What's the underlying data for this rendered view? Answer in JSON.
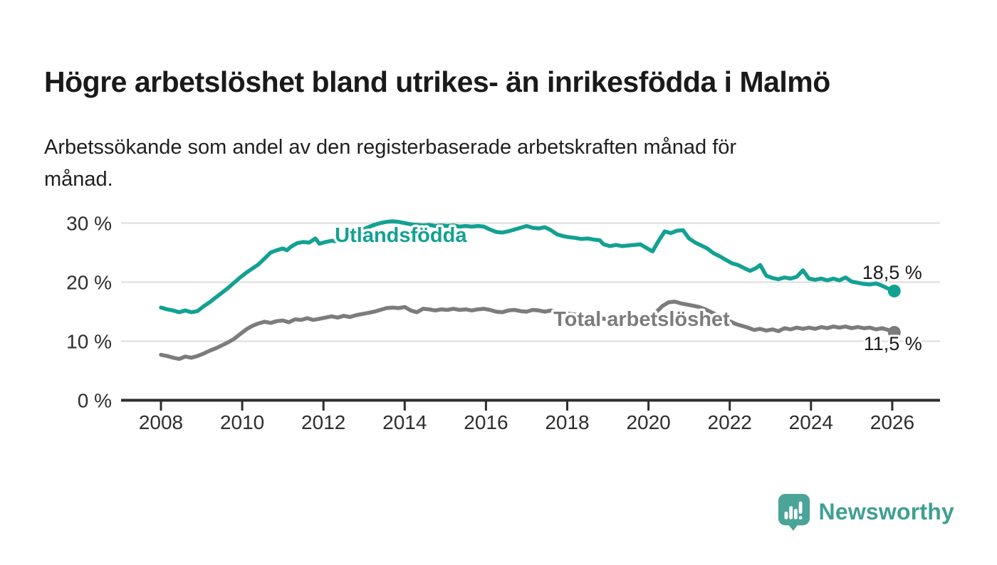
{
  "header": {
    "title": "Högre arbetslöshet bland utrikes- än inrikesfödda i Malmö",
    "subtitle": "Arbetssökande som andel av den registerbaserade arbetskraften månad för\nmånad."
  },
  "footer": {
    "brand": "Newsworthy",
    "brand_color": "#3f9f92",
    "logo_icon": "newsworthy-speech-bubble-bar-chart-icon"
  },
  "chart_data": {
    "type": "line",
    "title": "Högre arbetslöshet bland utrikes- än inrikesfödda i Malmö",
    "subtitle": "Arbetssökande som andel av den registerbaserade arbetskraften månad för månad.",
    "unit": "%",
    "grid": true,
    "legend": "inline-labels-on-lines",
    "x_axis": {
      "label": "",
      "ticks": [
        2008,
        2010,
        2012,
        2014,
        2016,
        2018,
        2020,
        2022,
        2024,
        2026
      ],
      "range": [
        2007.0,
        2027.1
      ]
    },
    "y_axis": {
      "label": "",
      "values": [
        0,
        10,
        20,
        30
      ],
      "tick_labels": [
        "0 %",
        "10 %",
        "20 %",
        "30 %"
      ],
      "range": [
        0,
        33
      ]
    },
    "colors": {
      "axis": "#2e2e2e",
      "gridline": "#dcdcdc",
      "value_label": "#1a1a1a"
    },
    "series": [
      {
        "name": "Utlandsfödda",
        "color": "#12a192",
        "end_label": "18,5 %",
        "end_label_side": "above",
        "label_anchor": [
          2012.28,
          26.8
        ],
        "points": [
          [
            2008.0,
            15.7
          ],
          [
            2008.15,
            15.4
          ],
          [
            2008.3,
            15.2
          ],
          [
            2008.45,
            14.9
          ],
          [
            2008.6,
            15.2
          ],
          [
            2008.75,
            14.9
          ],
          [
            2008.9,
            15.1
          ],
          [
            2009.05,
            15.9
          ],
          [
            2009.2,
            16.6
          ],
          [
            2009.35,
            17.4
          ],
          [
            2009.5,
            18.2
          ],
          [
            2009.65,
            19.0
          ],
          [
            2009.8,
            19.9
          ],
          [
            2009.95,
            20.8
          ],
          [
            2010.1,
            21.6
          ],
          [
            2010.25,
            22.3
          ],
          [
            2010.4,
            23.0
          ],
          [
            2010.55,
            24.0
          ],
          [
            2010.7,
            25.0
          ],
          [
            2010.85,
            25.4
          ],
          [
            2011.0,
            25.7
          ],
          [
            2011.1,
            25.4
          ],
          [
            2011.2,
            26.0
          ],
          [
            2011.35,
            26.6
          ],
          [
            2011.5,
            26.8
          ],
          [
            2011.65,
            26.7
          ],
          [
            2011.8,
            27.4
          ],
          [
            2011.9,
            26.5
          ],
          [
            2012.05,
            26.8
          ],
          [
            2012.2,
            27.0
          ],
          [
            2012.35,
            26.9
          ],
          [
            2012.5,
            27.3
          ],
          [
            2012.65,
            27.8
          ],
          [
            2012.8,
            28.3
          ],
          [
            2012.95,
            28.8
          ],
          [
            2013.1,
            29.3
          ],
          [
            2013.25,
            29.7
          ],
          [
            2013.4,
            30.0
          ],
          [
            2013.55,
            30.2
          ],
          [
            2013.7,
            30.3
          ],
          [
            2013.85,
            30.2
          ],
          [
            2014.0,
            30.0
          ],
          [
            2014.15,
            29.8
          ],
          [
            2014.3,
            29.7
          ],
          [
            2014.45,
            29.6
          ],
          [
            2014.6,
            29.7
          ],
          [
            2014.75,
            29.5
          ],
          [
            2014.9,
            29.6
          ],
          [
            2015.05,
            29.5
          ],
          [
            2015.2,
            29.6
          ],
          [
            2015.35,
            29.4
          ],
          [
            2015.5,
            29.5
          ],
          [
            2015.65,
            29.4
          ],
          [
            2015.8,
            29.5
          ],
          [
            2015.95,
            29.4
          ],
          [
            2016.1,
            28.9
          ],
          [
            2016.25,
            28.5
          ],
          [
            2016.4,
            28.4
          ],
          [
            2016.55,
            28.6
          ],
          [
            2016.7,
            28.9
          ],
          [
            2016.85,
            29.2
          ],
          [
            2017.0,
            29.5
          ],
          [
            2017.15,
            29.2
          ],
          [
            2017.3,
            29.1
          ],
          [
            2017.45,
            29.3
          ],
          [
            2017.6,
            28.8
          ],
          [
            2017.75,
            28.1
          ],
          [
            2017.9,
            27.8
          ],
          [
            2018.05,
            27.6
          ],
          [
            2018.2,
            27.5
          ],
          [
            2018.35,
            27.3
          ],
          [
            2018.5,
            27.4
          ],
          [
            2018.65,
            27.2
          ],
          [
            2018.8,
            27.1
          ],
          [
            2018.9,
            26.4
          ],
          [
            2019.05,
            26.1
          ],
          [
            2019.2,
            26.3
          ],
          [
            2019.35,
            26.1
          ],
          [
            2019.5,
            26.2
          ],
          [
            2019.65,
            26.3
          ],
          [
            2019.8,
            26.4
          ],
          [
            2019.95,
            25.8
          ],
          [
            2020.1,
            25.2
          ],
          [
            2020.25,
            27.0
          ],
          [
            2020.4,
            28.6
          ],
          [
            2020.55,
            28.3
          ],
          [
            2020.7,
            28.7
          ],
          [
            2020.85,
            28.8
          ],
          [
            2021.0,
            27.4
          ],
          [
            2021.15,
            26.7
          ],
          [
            2021.3,
            26.2
          ],
          [
            2021.45,
            25.7
          ],
          [
            2021.6,
            24.9
          ],
          [
            2021.75,
            24.4
          ],
          [
            2021.9,
            23.8
          ],
          [
            2022.05,
            23.2
          ],
          [
            2022.2,
            22.9
          ],
          [
            2022.35,
            22.4
          ],
          [
            2022.5,
            21.9
          ],
          [
            2022.65,
            22.4
          ],
          [
            2022.75,
            22.9
          ],
          [
            2022.9,
            21.1
          ],
          [
            2023.05,
            20.7
          ],
          [
            2023.2,
            20.5
          ],
          [
            2023.35,
            20.8
          ],
          [
            2023.5,
            20.6
          ],
          [
            2023.65,
            20.9
          ],
          [
            2023.8,
            22.0
          ],
          [
            2023.95,
            20.6
          ],
          [
            2024.1,
            20.4
          ],
          [
            2024.25,
            20.6
          ],
          [
            2024.4,
            20.3
          ],
          [
            2024.55,
            20.6
          ],
          [
            2024.7,
            20.3
          ],
          [
            2024.85,
            20.8
          ],
          [
            2025.0,
            20.1
          ],
          [
            2025.15,
            19.9
          ],
          [
            2025.3,
            19.7
          ],
          [
            2025.45,
            19.6
          ],
          [
            2025.6,
            19.8
          ],
          [
            2025.75,
            19.4
          ],
          [
            2025.9,
            18.9
          ],
          [
            2026.05,
            18.5
          ]
        ]
      },
      {
        "name": "Total arbetslöshet",
        "color": "#7c7c7c",
        "end_label": "11,5 %",
        "end_label_side": "below",
        "label_anchor": [
          2017.66,
          12.6
        ],
        "points": [
          [
            2008.0,
            7.7
          ],
          [
            2008.15,
            7.5
          ],
          [
            2008.3,
            7.2
          ],
          [
            2008.45,
            7.0
          ],
          [
            2008.6,
            7.4
          ],
          [
            2008.75,
            7.2
          ],
          [
            2008.9,
            7.5
          ],
          [
            2009.05,
            7.9
          ],
          [
            2009.2,
            8.4
          ],
          [
            2009.35,
            8.8
          ],
          [
            2009.5,
            9.3
          ],
          [
            2009.65,
            9.8
          ],
          [
            2009.8,
            10.4
          ],
          [
            2009.95,
            11.2
          ],
          [
            2010.1,
            12.0
          ],
          [
            2010.25,
            12.6
          ],
          [
            2010.4,
            13.0
          ],
          [
            2010.55,
            13.3
          ],
          [
            2010.7,
            13.1
          ],
          [
            2010.85,
            13.4
          ],
          [
            2011.0,
            13.5
          ],
          [
            2011.15,
            13.2
          ],
          [
            2011.3,
            13.7
          ],
          [
            2011.45,
            13.6
          ],
          [
            2011.6,
            13.9
          ],
          [
            2011.75,
            13.6
          ],
          [
            2011.9,
            13.8
          ],
          [
            2012.05,
            14.0
          ],
          [
            2012.2,
            14.2
          ],
          [
            2012.35,
            14.0
          ],
          [
            2012.5,
            14.3
          ],
          [
            2012.65,
            14.1
          ],
          [
            2012.8,
            14.4
          ],
          [
            2012.95,
            14.6
          ],
          [
            2013.1,
            14.8
          ],
          [
            2013.25,
            15.0
          ],
          [
            2013.4,
            15.3
          ],
          [
            2013.55,
            15.6
          ],
          [
            2013.7,
            15.7
          ],
          [
            2013.85,
            15.6
          ],
          [
            2014.0,
            15.8
          ],
          [
            2014.15,
            15.2
          ],
          [
            2014.3,
            14.9
          ],
          [
            2014.45,
            15.5
          ],
          [
            2014.6,
            15.4
          ],
          [
            2014.75,
            15.2
          ],
          [
            2014.9,
            15.4
          ],
          [
            2015.05,
            15.3
          ],
          [
            2015.2,
            15.5
          ],
          [
            2015.35,
            15.3
          ],
          [
            2015.5,
            15.4
          ],
          [
            2015.65,
            15.2
          ],
          [
            2015.8,
            15.4
          ],
          [
            2015.95,
            15.5
          ],
          [
            2016.1,
            15.3
          ],
          [
            2016.25,
            15.0
          ],
          [
            2016.4,
            14.9
          ],
          [
            2016.55,
            15.2
          ],
          [
            2016.7,
            15.3
          ],
          [
            2016.85,
            15.1
          ],
          [
            2017.0,
            15.0
          ],
          [
            2017.15,
            15.3
          ],
          [
            2017.3,
            15.2
          ],
          [
            2017.45,
            15.0
          ],
          [
            2017.6,
            15.2
          ],
          [
            2017.75,
            15.0
          ],
          [
            2017.9,
            14.8
          ],
          [
            2018.1,
            14.6
          ],
          [
            2018.3,
            14.4
          ],
          [
            2018.5,
            14.2
          ],
          [
            2018.7,
            14.0
          ],
          [
            2018.9,
            13.8
          ],
          [
            2019.1,
            13.6
          ],
          [
            2019.3,
            13.5
          ],
          [
            2019.5,
            13.4
          ],
          [
            2019.7,
            13.5
          ],
          [
            2019.9,
            13.7
          ],
          [
            2020.05,
            14.1
          ],
          [
            2020.2,
            15.0
          ],
          [
            2020.35,
            16.0
          ],
          [
            2020.5,
            16.6
          ],
          [
            2020.65,
            16.7
          ],
          [
            2020.8,
            16.4
          ],
          [
            2020.95,
            16.2
          ],
          [
            2021.1,
            16.0
          ],
          [
            2021.25,
            15.8
          ],
          [
            2021.4,
            15.4
          ],
          [
            2021.55,
            14.9
          ],
          [
            2021.7,
            14.4
          ],
          [
            2021.85,
            13.9
          ],
          [
            2022.0,
            13.4
          ],
          [
            2022.15,
            12.9
          ],
          [
            2022.3,
            12.6
          ],
          [
            2022.45,
            12.3
          ],
          [
            2022.6,
            11.9
          ],
          [
            2022.75,
            12.1
          ],
          [
            2022.9,
            11.8
          ],
          [
            2023.05,
            12.0
          ],
          [
            2023.2,
            11.7
          ],
          [
            2023.35,
            12.2
          ],
          [
            2023.5,
            12.0
          ],
          [
            2023.65,
            12.3
          ],
          [
            2023.8,
            12.1
          ],
          [
            2023.95,
            12.3
          ],
          [
            2024.1,
            12.1
          ],
          [
            2024.25,
            12.4
          ],
          [
            2024.4,
            12.2
          ],
          [
            2024.55,
            12.5
          ],
          [
            2024.7,
            12.3
          ],
          [
            2024.85,
            12.5
          ],
          [
            2025.0,
            12.2
          ],
          [
            2025.15,
            12.4
          ],
          [
            2025.3,
            12.2
          ],
          [
            2025.45,
            12.3
          ],
          [
            2025.6,
            12.0
          ],
          [
            2025.75,
            12.2
          ],
          [
            2025.9,
            11.9
          ],
          [
            2026.05,
            11.5
          ]
        ]
      }
    ]
  }
}
